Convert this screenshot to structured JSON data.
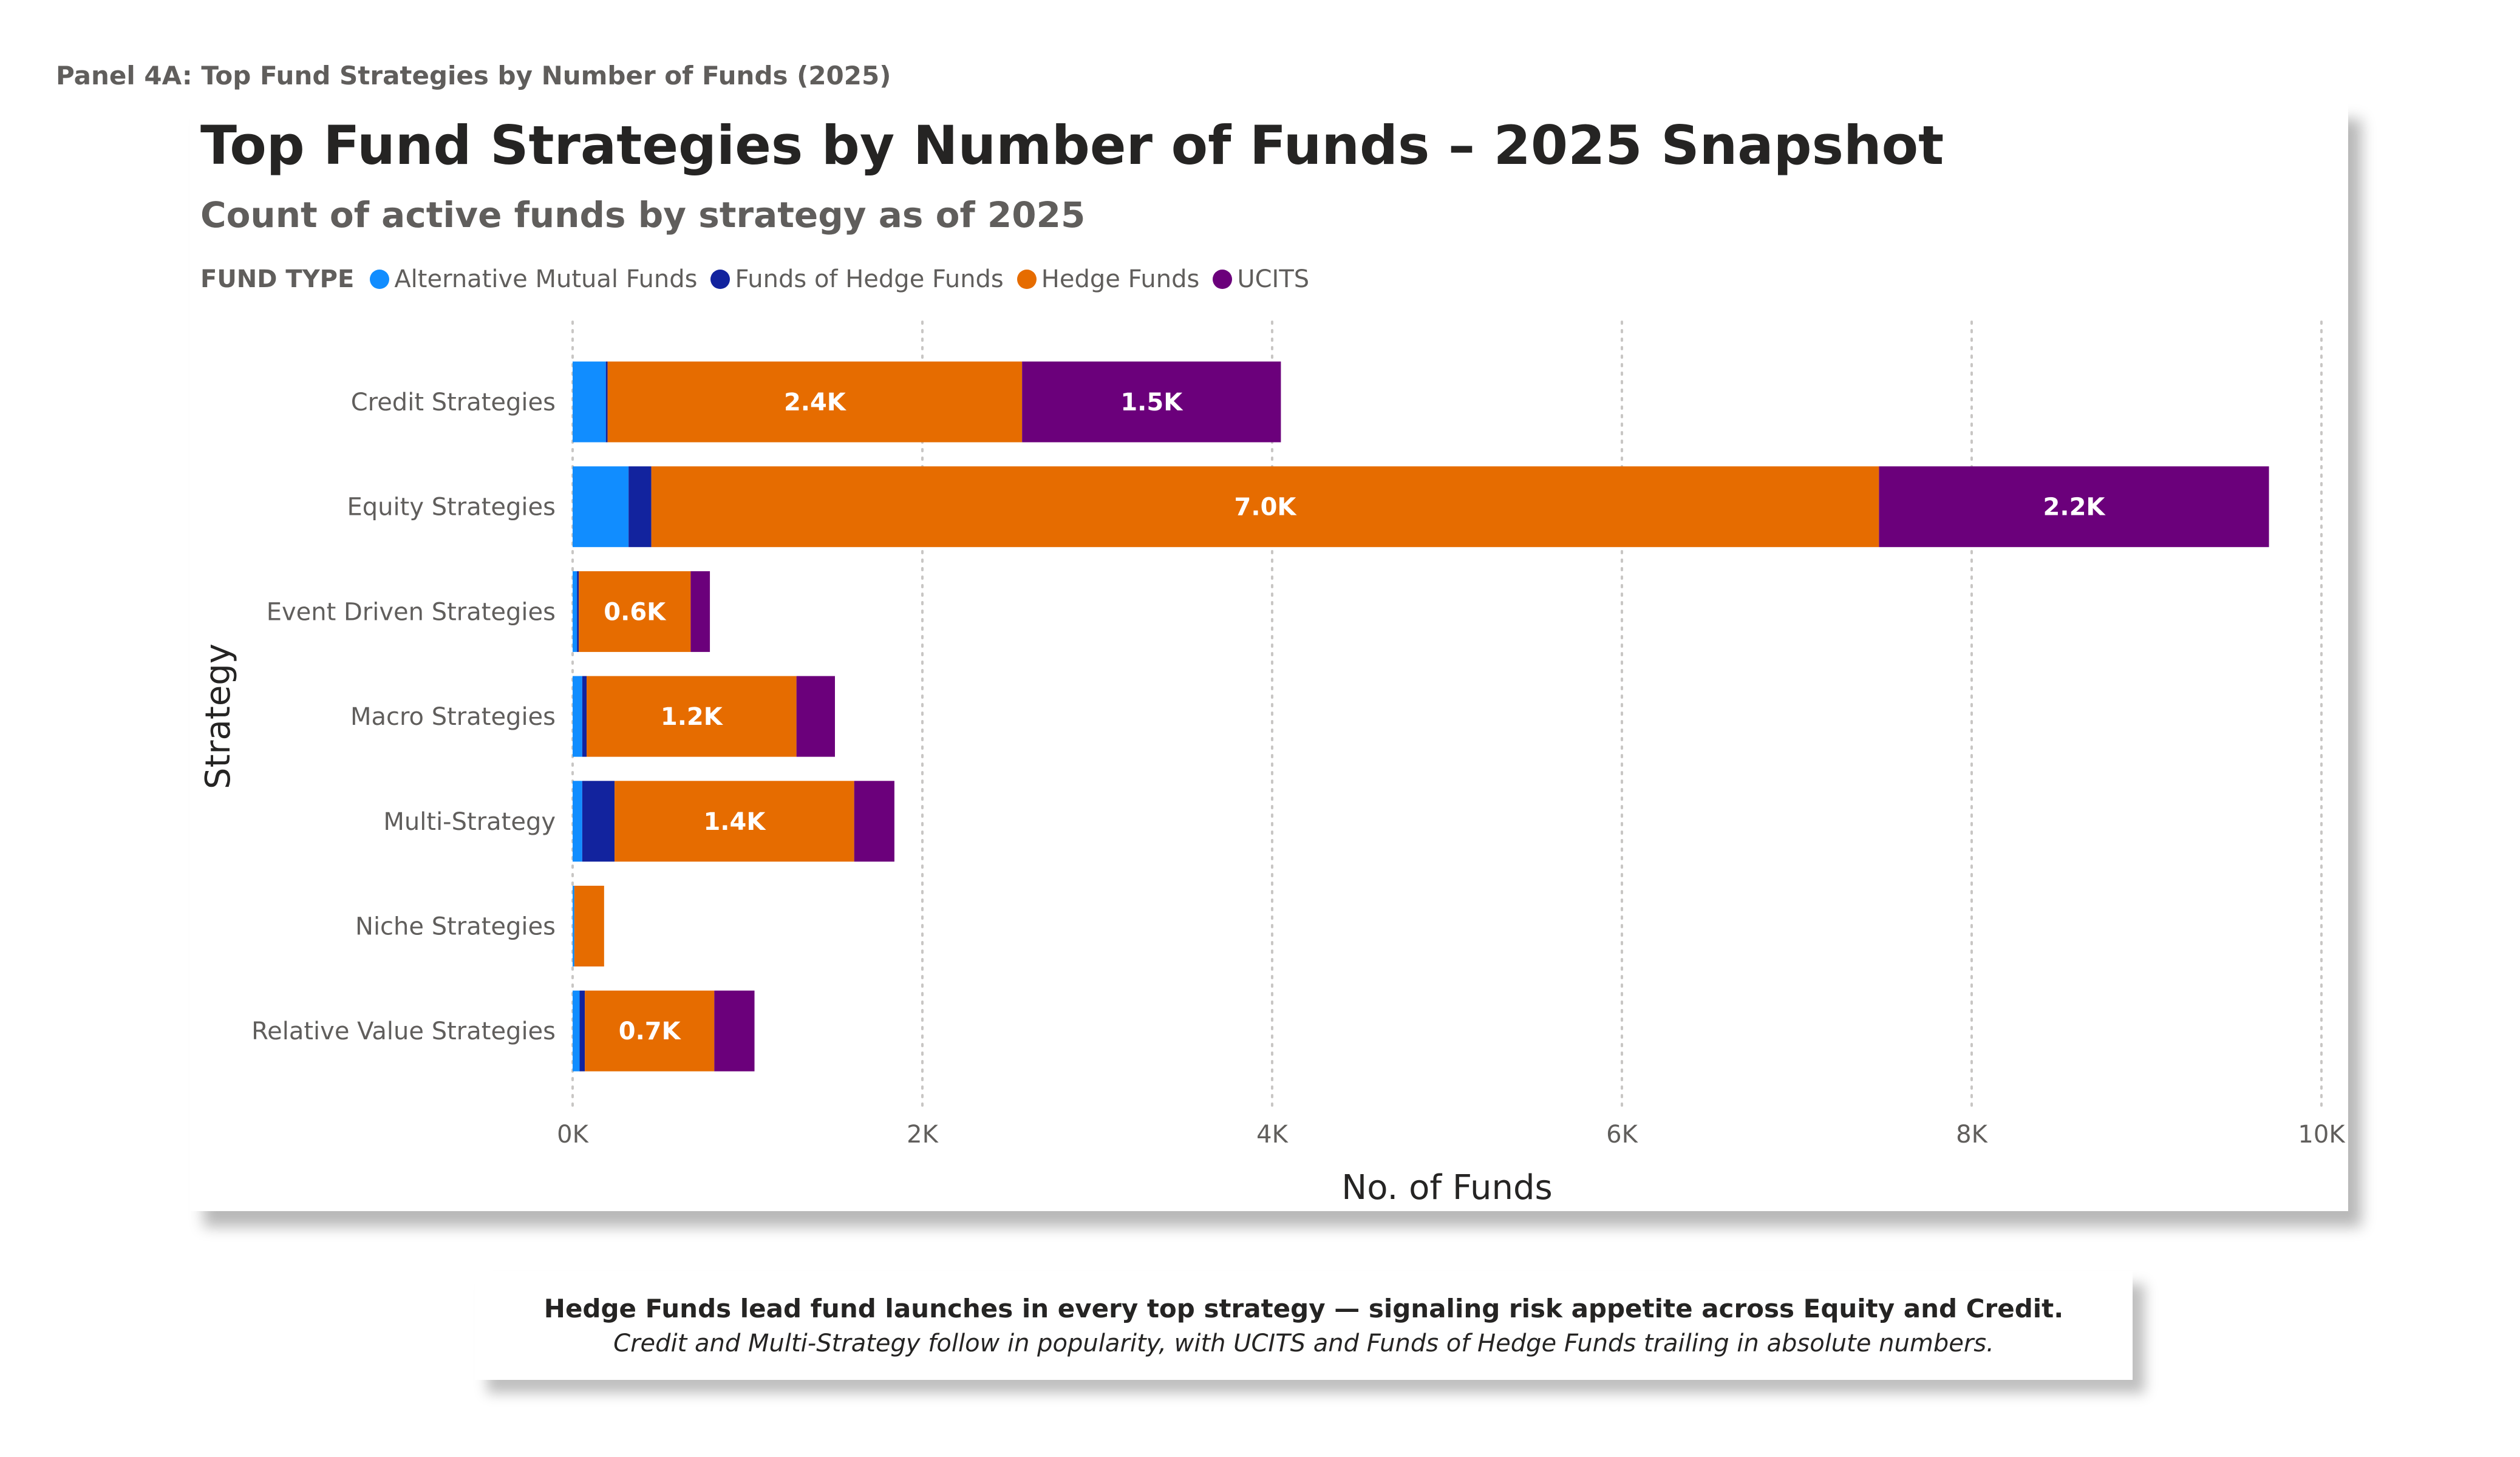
{
  "panel_label": "Panel 4A: Top Fund Strategies by Number of Funds (2025)",
  "callout": {
    "headline": "Hedge Funds lead fund launches in every top strategy — signaling risk appetite across Equity and Credit.",
    "body": "Credit and Multi-Strategy follow in popularity, with UCITS and Funds of Hedge Funds trailing in absolute numbers."
  },
  "chart_data": {
    "type": "bar",
    "orientation": "horizontal",
    "stacked": true,
    "title": "Top Fund Strategies by Number of Funds – 2025 Snapshot",
    "subtitle": "Count of active funds by strategy as of 2025",
    "legend_title": "FUND TYPE",
    "legend_position": "top-left",
    "xlabel": "No. of Funds",
    "ylabel": "Strategy",
    "xlim": [
      0,
      10000
    ],
    "xticks": [
      0,
      2000,
      4000,
      6000,
      8000,
      10000
    ],
    "xtick_labels": [
      "0K",
      "2K",
      "4K",
      "6K",
      "8K",
      "10K"
    ],
    "grid": "vertical dotted",
    "categories": [
      "Credit Strategies",
      "Equity Strategies",
      "Event Driven Strategies",
      "Macro Strategies",
      "Multi-Strategy",
      "Niche Strategies",
      "Relative Value Strategies"
    ],
    "series": [
      {
        "name": "Alternative Mutual Funds",
        "color": "#118dff",
        "values": [
          190,
          320,
          25,
          55,
          55,
          10,
          40
        ]
      },
      {
        "name": "Funds of Hedge Funds",
        "color": "#12239e",
        "values": [
          10,
          130,
          10,
          25,
          185,
          0,
          30
        ]
      },
      {
        "name": "Hedge Funds",
        "color": "#e66c00",
        "values": [
          2370,
          7020,
          640,
          1200,
          1370,
          170,
          740
        ],
        "labels": [
          "2.4K",
          "7.0K",
          "0.6K",
          "1.2K",
          "1.4K",
          "",
          "0.7K"
        ]
      },
      {
        "name": "UCITS",
        "color": "#6b007b",
        "values": [
          1480,
          2230,
          110,
          220,
          230,
          0,
          230
        ],
        "labels": [
          "1.5K",
          "2.2K",
          "",
          "",
          "",
          "",
          ""
        ]
      }
    ]
  }
}
